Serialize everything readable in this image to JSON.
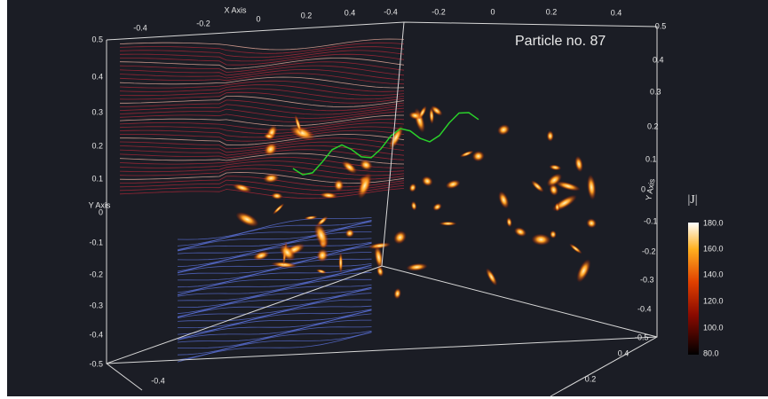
{
  "annotation": "Particle no. 87",
  "colorbar": {
    "title": "|J|",
    "ticks": [
      "180.0",
      "160.0",
      "140.0",
      "120.0",
      "100.0",
      "80.0"
    ]
  },
  "axes": {
    "x_top_label": "X Axis",
    "x_top_ticks": [
      "-0.4",
      "-0.2",
      "0",
      "0.2",
      "0.4"
    ],
    "x_top2_ticks": [
      "-0.4",
      "-0.2",
      "0",
      "0.2",
      "0.4",
      "0.5"
    ],
    "y_left_label": "Y Axis",
    "y_left_ticks": [
      "0.5",
      "0.4",
      "0.3",
      "0.2",
      "0.1",
      "0",
      "-0.1",
      "-0.2",
      "-0.3",
      "-0.4",
      "-0.5"
    ],
    "y_right_label": "Y Axis",
    "y_right_ticks": [
      "0.4",
      "0.3",
      "0.2",
      "0.1",
      "0",
      "-0.1",
      "-0.2",
      "-0.3",
      "-0.4",
      "-0.5"
    ],
    "bottom_ticks": [
      "-0.4",
      "0.4",
      "0.2"
    ]
  }
}
